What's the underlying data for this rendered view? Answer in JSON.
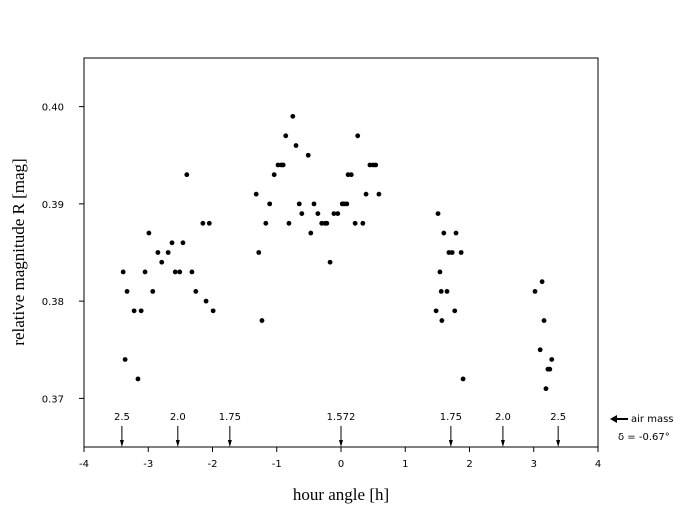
{
  "chart_data": {
    "type": "scatter",
    "x_label": "hour angle [h]",
    "y_label": "relative magnitude R [mag]",
    "xlim": [
      -4,
      4
    ],
    "ylim": [
      0.365,
      0.405
    ],
    "xticks": [
      -4,
      -3,
      -2,
      -1,
      0,
      1,
      2,
      3,
      4
    ],
    "yticks": [
      {
        "value": 0.37,
        "label": "0.37"
      },
      {
        "value": 0.38,
        "label": "0.38"
      },
      {
        "value": 0.39,
        "label": "0.39"
      },
      {
        "value": 0.4,
        "label": "0.40"
      }
    ],
    "color": "#000000",
    "x": [
      -3.39,
      -3.36,
      -3.33,
      -3.22,
      -3.16,
      -3.11,
      -3.05,
      -2.99,
      -2.93,
      -2.85,
      -2.79,
      -2.69,
      -2.63,
      -2.58,
      -2.51,
      -2.46,
      -2.4,
      -2.32,
      -2.26,
      -2.15,
      -2.1,
      -2.05,
      -1.99,
      -1.32,
      -1.28,
      -1.23,
      -1.17,
      -1.11,
      -1.04,
      -0.98,
      -0.93,
      -0.9,
      -0.86,
      -0.81,
      -0.75,
      -0.7,
      -0.65,
      -0.61,
      -0.51,
      -0.47,
      -0.42,
      -0.36,
      -0.3,
      -0.25,
      -0.22,
      -0.17,
      -0.11,
      -0.05,
      0.02,
      0.05,
      0.09,
      0.11,
      0.16,
      0.22,
      0.26,
      0.34,
      0.39,
      0.45,
      0.5,
      0.54,
      0.59,
      1.48,
      1.51,
      1.54,
      1.56,
      1.57,
      1.6,
      1.65,
      1.68,
      1.73,
      1.77,
      1.79,
      1.87,
      1.9,
      3.02,
      3.1,
      3.13,
      3.16,
      3.19,
      3.22,
      3.25,
      3.28
    ],
    "y": [
      0.383,
      0.374,
      0.381,
      0.379,
      0.372,
      0.379,
      0.383,
      0.387,
      0.381,
      0.385,
      0.384,
      0.385,
      0.386,
      0.383,
      0.383,
      0.386,
      0.393,
      0.383,
      0.381,
      0.388,
      0.38,
      0.388,
      0.379,
      0.391,
      0.385,
      0.378,
      0.388,
      0.39,
      0.393,
      0.394,
      0.394,
      0.394,
      0.397,
      0.388,
      0.399,
      0.396,
      0.39,
      0.389,
      0.395,
      0.387,
      0.39,
      0.389,
      0.388,
      0.388,
      0.388,
      0.384,
      0.389,
      0.389,
      0.39,
      0.39,
      0.39,
      0.393,
      0.393,
      0.388,
      0.397,
      0.388,
      0.391,
      0.394,
      0.394,
      0.394,
      0.391,
      0.379,
      0.389,
      0.383,
      0.381,
      0.378,
      0.387,
      0.381,
      0.385,
      0.385,
      0.379,
      0.387,
      0.385,
      0.372,
      0.381,
      0.375,
      0.382,
      0.378,
      0.371,
      0.373,
      0.373,
      0.374
    ],
    "air_mass_markers": [
      {
        "x": -3.41,
        "label": "2.5"
      },
      {
        "x": -2.54,
        "label": "2.0"
      },
      {
        "x": -1.73,
        "label": "1.75"
      },
      {
        "x": 0,
        "label": "1.572"
      },
      {
        "x": 1.71,
        "label": "1.75"
      },
      {
        "x": 2.52,
        "label": "2.0"
      },
      {
        "x": 3.38,
        "label": "2.5"
      }
    ],
    "air_mass_label": "air mass",
    "declination_label": "δ = -0.67°"
  }
}
